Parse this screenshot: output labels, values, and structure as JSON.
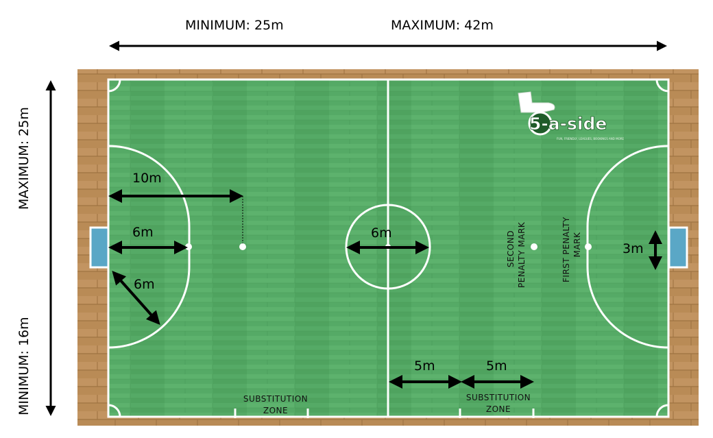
{
  "diagram": {
    "dimensions": {
      "length_min": "MINIMUM: 25m",
      "length_max": "MAXIMUM: 42m",
      "width_max": "MAXIMUM: 25m",
      "width_min": "MINIMUM: 16m"
    },
    "measurements": {
      "ten_m": "10m",
      "six_m_spot": "6m",
      "six_m_radius": "6m",
      "center_six_m": "6m",
      "goal_three_m": "3m",
      "sub_five_a": "5m",
      "sub_five_b": "5m"
    },
    "labels": {
      "second_penalty": [
        "SECOND",
        "PENALTY MARK"
      ],
      "first_penalty": [
        "FIRST PENALTY",
        "MARK"
      ],
      "substitution_zone": [
        "SUBSTITUTION",
        "ZONE"
      ]
    },
    "logo": {
      "text": "5-a-side",
      "tagline": "FUN, FRIENDLY, LEAGUES, BOOKINGS AND MORE"
    },
    "colors": {
      "floor_wood": "#b88a55",
      "pitch_green": "#52a863",
      "goal_blue": "#5aa7c6",
      "line_white": "#ffffff",
      "logo_green": "#2e8b3a"
    }
  }
}
